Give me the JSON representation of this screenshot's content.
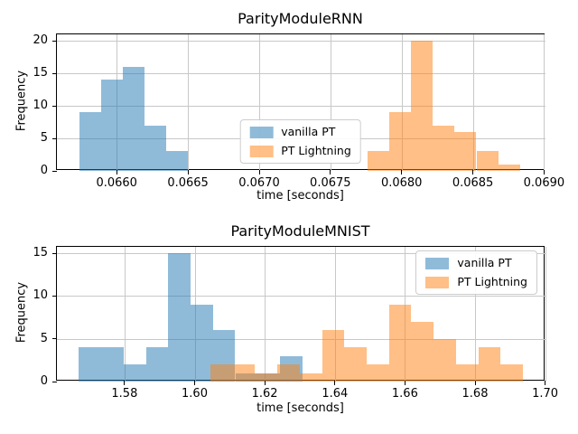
{
  "colors": {
    "vanilla_pt": "#1f77b4",
    "pt_lightning": "#ff7f0e",
    "grid": "#c8c8c8",
    "spine": "#000000",
    "legend_border": "#cccccc"
  },
  "chart_data": [
    {
      "type": "histogram",
      "title": "ParityModuleRNN",
      "xlabel": "time [seconds]",
      "ylabel": "Frequency",
      "xlim": [
        0.06558,
        0.06901
      ],
      "ylim": [
        0,
        21
      ],
      "grid": true,
      "xticks": {
        "values": [
          0.066,
          0.0665,
          0.067,
          0.0675,
          0.068,
          0.0685,
          0.069
        ],
        "labels": [
          "0.0660",
          "0.0665",
          "0.0670",
          "0.0675",
          "0.0680",
          "0.0685",
          "0.0690"
        ]
      },
      "yticks": {
        "values": [
          0,
          5,
          10,
          15,
          20
        ],
        "labels": [
          "0",
          "5",
          "10",
          "15",
          "20"
        ]
      },
      "legend": {
        "position": "lower center"
      },
      "series": [
        {
          "name": "vanilla PT",
          "color": "#1f77b4",
          "alpha": 0.5,
          "bin_start": 0.06574,
          "bin_width": 0.000152,
          "counts": [
            9,
            14,
            16,
            7,
            3
          ]
        },
        {
          "name": "PT Lightning",
          "color": "#ff7f0e",
          "alpha": 0.5,
          "bin_start": 0.06776,
          "bin_width": 0.000153,
          "counts": [
            3,
            9,
            20,
            7,
            6,
            3,
            1
          ]
        }
      ]
    },
    {
      "type": "histogram",
      "title": "ParityModuleMNIST",
      "xlabel": "time [seconds]",
      "ylabel": "Frequency",
      "xlim": [
        1.5607,
        1.7001
      ],
      "ylim": [
        0,
        15.75
      ],
      "grid": true,
      "xticks": {
        "values": [
          1.58,
          1.6,
          1.62,
          1.64,
          1.66,
          1.68,
          1.7
        ],
        "labels": [
          "1.58",
          "1.60",
          "1.62",
          "1.64",
          "1.66",
          "1.68",
          "1.70"
        ]
      },
      "yticks": {
        "values": [
          0,
          5,
          10,
          15
        ],
        "labels": [
          "0",
          "5",
          "10",
          "15"
        ]
      },
      "legend": {
        "position": "upper right"
      },
      "series": [
        {
          "name": "vanilla PT",
          "color": "#1f77b4",
          "alpha": 0.5,
          "bin_start": 1.567,
          "bin_width": 0.00637,
          "counts": [
            4,
            4,
            2,
            4,
            15,
            9,
            6,
            1,
            1,
            3
          ]
        },
        {
          "name": "PT Lightning",
          "color": "#ff7f0e",
          "alpha": 0.5,
          "bin_start": 1.6045,
          "bin_width": 0.00637,
          "counts": [
            2,
            2,
            1,
            2,
            1,
            6,
            4,
            2,
            9,
            7,
            5,
            2,
            4,
            2
          ]
        }
      ]
    }
  ]
}
